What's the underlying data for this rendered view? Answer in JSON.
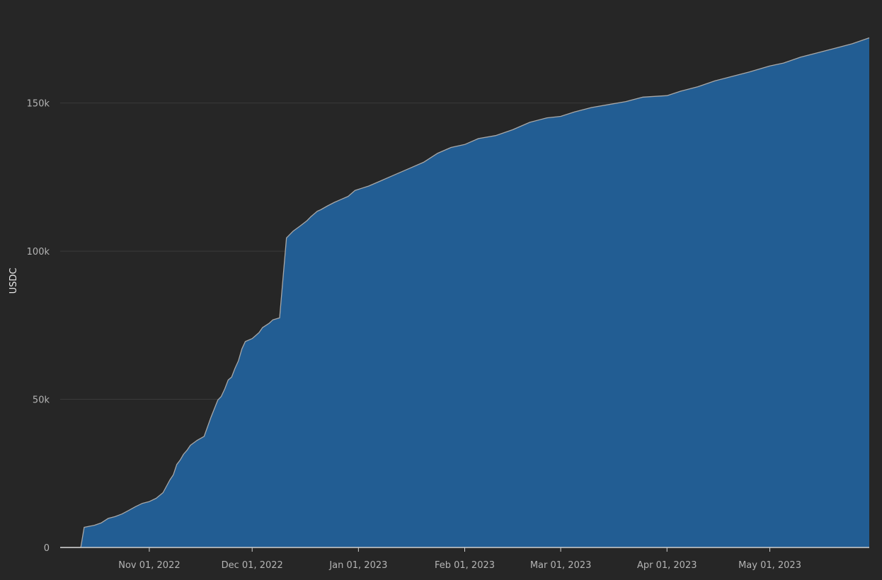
{
  "chart_data": {
    "type": "area",
    "title": "",
    "xlabel": "",
    "ylabel": "USDC",
    "ylim": [
      0,
      180000
    ],
    "y_ticks": [
      {
        "value": 0,
        "label": "0"
      },
      {
        "value": 50000,
        "label": "50k"
      },
      {
        "value": 100000,
        "label": "100k"
      },
      {
        "value": 150000,
        "label": "150k"
      }
    ],
    "x_ticks": [
      {
        "date": "2022-11-01",
        "label": "Nov 01, 2022"
      },
      {
        "date": "2022-12-01",
        "label": "Dec 01, 2022"
      },
      {
        "date": "2023-01-01",
        "label": "Jan 01, 2023"
      },
      {
        "date": "2023-02-01",
        "label": "Feb 01, 2023"
      },
      {
        "date": "2023-03-01",
        "label": "Mar 01, 2023"
      },
      {
        "date": "2023-04-01",
        "label": "Apr 01, 2023"
      },
      {
        "date": "2023-05-01",
        "label": "May 01, 2023"
      }
    ],
    "xlim": [
      "2022-10-06",
      "2023-05-30"
    ],
    "grid": true,
    "legend": "none",
    "colors": {
      "fill": "#225d93",
      "line": "#a8a8a8",
      "grid": "#3a3a3a",
      "background": "#262626"
    },
    "series": [
      {
        "x": [
          "2022-10-06",
          "2022-10-12",
          "2022-10-13",
          "2022-10-16",
          "2022-10-18",
          "2022-10-20",
          "2022-10-22",
          "2022-10-24",
          "2022-10-26",
          "2022-10-28",
          "2022-10-30",
          "2022-11-01",
          "2022-11-03",
          "2022-11-05",
          "2022-11-07",
          "2022-11-08",
          "2022-11-09",
          "2022-11-10",
          "2022-11-11",
          "2022-11-12",
          "2022-11-13",
          "2022-11-15",
          "2022-11-17",
          "2022-11-19",
          "2022-11-21",
          "2022-11-22",
          "2022-11-23",
          "2022-11-24",
          "2022-11-25",
          "2022-11-26",
          "2022-11-27",
          "2022-11-28",
          "2022-11-29",
          "2022-12-01",
          "2022-12-02",
          "2022-12-03",
          "2022-12-04",
          "2022-12-06",
          "2022-12-07",
          "2022-12-09",
          "2022-12-11",
          "2022-12-13",
          "2022-12-15",
          "2022-12-17",
          "2022-12-18",
          "2022-12-19",
          "2022-12-20",
          "2022-12-21",
          "2022-12-23",
          "2022-12-25",
          "2022-12-27",
          "2022-12-29",
          "2022-12-31",
          "2023-01-04",
          "2023-01-08",
          "2023-01-12",
          "2023-01-16",
          "2023-01-20",
          "2023-01-24",
          "2023-01-28",
          "2023-02-01",
          "2023-02-05",
          "2023-02-10",
          "2023-02-15",
          "2023-02-20",
          "2023-02-25",
          "2023-03-01",
          "2023-03-05",
          "2023-03-10",
          "2023-03-15",
          "2023-03-20",
          "2023-03-25",
          "2023-04-01",
          "2023-04-05",
          "2023-04-10",
          "2023-04-15",
          "2023-04-20",
          "2023-04-25",
          "2023-05-01",
          "2023-05-05",
          "2023-05-10",
          "2023-05-15",
          "2023-05-20",
          "2023-05-25",
          "2023-05-30"
        ],
        "y": [
          0,
          0,
          6800,
          7500,
          8300,
          9800,
          10400,
          11300,
          12500,
          13800,
          14900,
          15500,
          16600,
          18500,
          22800,
          24500,
          28000,
          29500,
          31500,
          32800,
          34500,
          36200,
          37500,
          44000,
          49800,
          51000,
          53500,
          56500,
          57500,
          60500,
          63000,
          67000,
          69500,
          70500,
          71500,
          72500,
          74200,
          75700,
          76800,
          77500,
          104500,
          106800,
          108500,
          110300,
          111500,
          112500,
          113500,
          114000,
          115300,
          116500,
          117500,
          118500,
          120500,
          122000,
          124000,
          126000,
          128000,
          130000,
          133000,
          135000,
          136000,
          138000,
          139000,
          141000,
          143500,
          145000,
          145500,
          147000,
          148500,
          149500,
          150500,
          152000,
          152500,
          154000,
          155500,
          157500,
          159000,
          160500,
          162500,
          163500,
          165500,
          167000,
          168500,
          170000,
          172000
        ]
      }
    ]
  }
}
